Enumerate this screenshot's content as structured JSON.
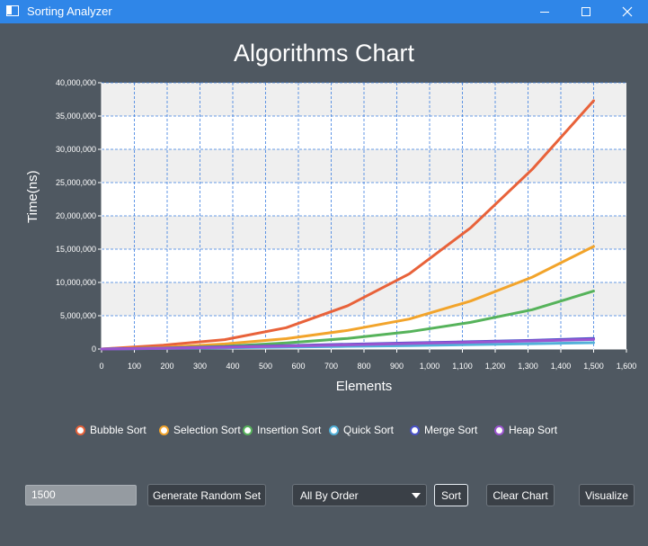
{
  "window": {
    "title": "Sorting Analyzer"
  },
  "chart_data": {
    "type": "line",
    "title": "Algorithms Chart",
    "xlabel": "Elements",
    "ylabel": "Time(ns)",
    "xlim": [
      0,
      1600
    ],
    "ylim": [
      0,
      40000000
    ],
    "x_ticks": [
      0,
      100,
      200,
      300,
      400,
      500,
      600,
      700,
      800,
      900,
      1000,
      1100,
      1200,
      1300,
      1400,
      1500,
      1600
    ],
    "x_tick_labels": [
      "0",
      "100",
      "200",
      "300",
      "400",
      "500",
      "600",
      "700",
      "800",
      "900",
      "1,000",
      "1,100",
      "1,200",
      "1,300",
      "1,400",
      "1,500",
      "1,600"
    ],
    "y_ticks": [
      0,
      5000000,
      10000000,
      15000000,
      20000000,
      25000000,
      30000000,
      35000000,
      40000000
    ],
    "y_tick_labels": [
      "0",
      "5,000,000",
      "10,000,000",
      "15,000,000",
      "20,000,000",
      "25,000,000",
      "30,000,000",
      "35,000,000",
      "40,000,000"
    ],
    "grid": true,
    "legend_position": "bottom",
    "x": [
      0,
      188,
      375,
      563,
      750,
      938,
      1125,
      1313,
      1500
    ],
    "series": [
      {
        "name": "Bubble Sort",
        "color": "#e8623a",
        "values": [
          0,
          580000,
          1400000,
          3200000,
          6500000,
          11300000,
          18200000,
          27000000,
          37300000
        ]
      },
      {
        "name": "Selection Sort",
        "color": "#f2a42b",
        "values": [
          0,
          240000,
          750000,
          1550000,
          2800000,
          4500000,
          7200000,
          10800000,
          15400000
        ]
      },
      {
        "name": "Insertion Sort",
        "color": "#56b35b",
        "values": [
          0,
          130000,
          400000,
          900000,
          1600000,
          2600000,
          4000000,
          5900000,
          8700000
        ]
      },
      {
        "name": "Quick Sort",
        "color": "#52b0d8",
        "values": [
          0,
          80000,
          170000,
          280000,
          400000,
          520000,
          660000,
          800000,
          950000
        ]
      },
      {
        "name": "Merge Sort",
        "color": "#4a52c8",
        "values": [
          0,
          140000,
          320000,
          500000,
          720000,
          900000,
          1100000,
          1300000,
          1600000
        ]
      },
      {
        "name": "Heap Sort",
        "color": "#9c55d0",
        "values": [
          0,
          110000,
          260000,
          430000,
          620000,
          820000,
          1020000,
          1220000,
          1430000
        ]
      }
    ]
  },
  "controls": {
    "size_value": "1500",
    "generate_label": "Generate Random Set",
    "order_value": "All By Order",
    "sort_label": "Sort",
    "clear_label": "Clear Chart",
    "visualize_label": "Visualize"
  }
}
